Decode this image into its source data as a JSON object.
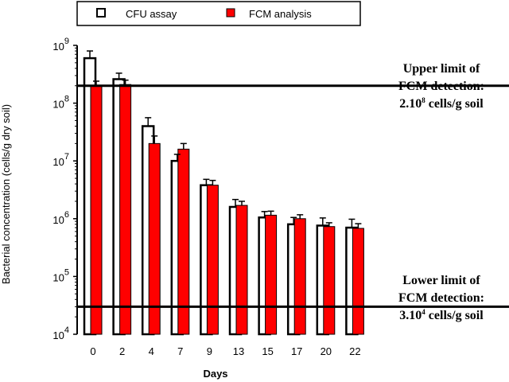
{
  "chart_data": {
    "type": "bar",
    "categories": [
      "0",
      "2",
      "4",
      "7",
      "9",
      "13",
      "15",
      "17",
      "20",
      "22"
    ],
    "xlabel": "Days",
    "ylabel": "Bacterial concentration (cells/g dry soil)",
    "yscale": "log",
    "ylim": [
      10000,
      1000000000
    ],
    "yticks": [
      {
        "base": "10",
        "exp": "4"
      },
      {
        "base": "10",
        "exp": "5"
      },
      {
        "base": "10",
        "exp": "6"
      },
      {
        "base": "10",
        "exp": "7"
      },
      {
        "base": "10",
        "exp": "8"
      },
      {
        "base": "10",
        "exp": "9"
      }
    ],
    "grid": false,
    "legend_position": "top",
    "series": [
      {
        "name": "CFU assay",
        "color": "#ffffff",
        "values": [
          600000000,
          260000000,
          40000000,
          10000000,
          3800000,
          1600000,
          1050000,
          800000,
          760000,
          700000
        ],
        "errors_upper": [
          800000000,
          330000000,
          56000000,
          13000000,
          4800000,
          2150000,
          1330000,
          1050000,
          1030000,
          980000
        ]
      },
      {
        "name": "FCM analysis",
        "color": "#ff0000",
        "values": [
          200000000,
          210000000,
          20000000,
          16000000,
          3800000,
          1700000,
          1150000,
          1000000,
          730000,
          680000
        ],
        "errors_upper": [
          240000000,
          250000000,
          27000000,
          20000000,
          4600000,
          2000000,
          1350000,
          1170000,
          850000,
          820000
        ]
      }
    ],
    "reference_lines": [
      {
        "value": 200000000
      },
      {
        "value": 30000
      }
    ]
  },
  "annotations": {
    "upper": {
      "line1": "Upper limit of",
      "line2": "FCM detection:",
      "prefix": "2.10",
      "exp": "8",
      "suffix": " cells/g soil"
    },
    "lower": {
      "line1": "Lower limit of",
      "line2": "FCM detection:",
      "prefix": "3.10",
      "exp": "4",
      "suffix": " cells/g soil"
    }
  }
}
